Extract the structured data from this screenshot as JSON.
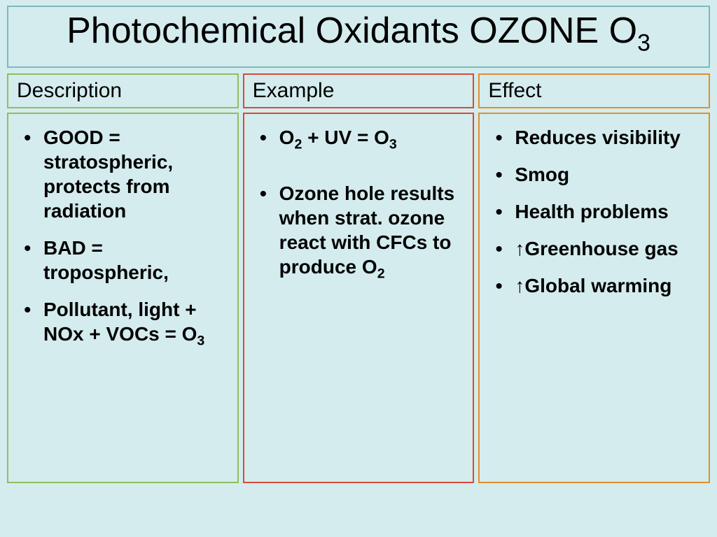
{
  "title_html": "Photochemical Oxidants OZONE O<sub>3</sub>",
  "columns": [
    {
      "header": "Description",
      "border_color": "#8fbf5c",
      "items": [
        {
          "html": "GOOD = stratospheric, protects from radiation"
        },
        {
          "html": "BAD = tropospheric,"
        },
        {
          "html": "Pollutant, light + NOx + VOCs = O<sub>3</sub>"
        }
      ]
    },
    {
      "header": "Example",
      "border_color": "#d94a38",
      "items": [
        {
          "html": "O<sub>2</sub> + UV = O<sub>3</sub>"
        },
        {
          "html": "Ozone hole results when strat. ozone react with CFCs to produce O<sub>2</sub>",
          "spaced": true
        }
      ]
    },
    {
      "header": "Effect",
      "border_color": "#e38f2d",
      "items": [
        {
          "html": "Reduces visibility"
        },
        {
          "html": "Smog"
        },
        {
          "html": "Health problems"
        },
        {
          "html": "<span class='arrow'>↑</span>Greenhouse gas"
        },
        {
          "html": "<span class='arrow'>↑</span>Global warming"
        }
      ]
    }
  ],
  "style": {
    "background": "#d4ecee",
    "title_border": "#7fb8b8",
    "title_fontsize": 52,
    "header_fontsize": 30,
    "body_fontsize": 28,
    "body_fontweight": "bold",
    "border_width": 2
  }
}
